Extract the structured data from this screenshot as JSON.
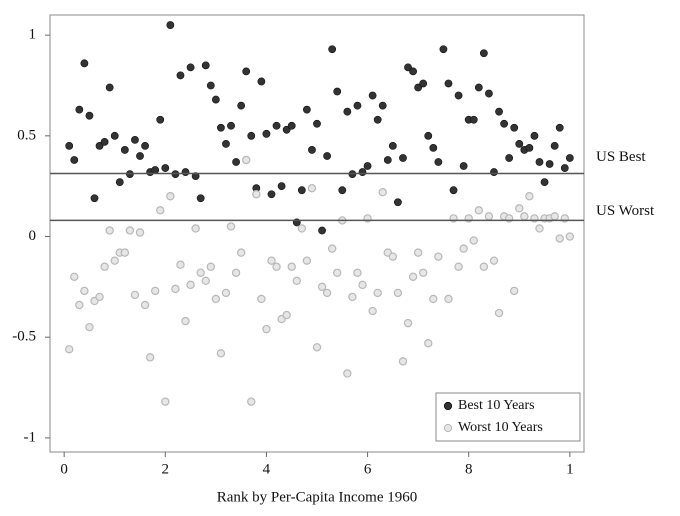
{
  "chart_data": {
    "type": "scatter",
    "x_label": "Rank by Per-Capita Income 1960",
    "xlim": [
      -0.028,
      1.028
    ],
    "ylim": [
      -1.07,
      1.1
    ],
    "xticks": [
      0,
      {
        "value": 0.2,
        "label": "2"
      },
      {
        "value": 0.4,
        "label": "4"
      },
      {
        "value": 0.6,
        "label": "6"
      },
      {
        "value": 0.8,
        "label": "8"
      },
      1
    ],
    "yticks": [
      1,
      0.5,
      0,
      -0.5,
      -1
    ],
    "legend": "lower right",
    "hlines": [
      {
        "label": "US Best",
        "value": 0.313
      },
      {
        "label": "US Worst",
        "value": 0.08
      }
    ],
    "series": [
      {
        "name": "Best 10 Years",
        "color": "#333333",
        "x": [
          0.01,
          0.02,
          0.03,
          0.04,
          0.05,
          0.06,
          0.07,
          0.08,
          0.09,
          0.1,
          0.11,
          0.12,
          0.13,
          0.14,
          0.15,
          0.16,
          0.17,
          0.18,
          0.19,
          0.2,
          0.21,
          0.22,
          0.23,
          0.24,
          0.25,
          0.26,
          0.27,
          0.28,
          0.29,
          0.3,
          0.31,
          0.32,
          0.33,
          0.34,
          0.35,
          0.36,
          0.37,
          0.38,
          0.39,
          0.4,
          0.41,
          0.42,
          0.43,
          0.44,
          0.45,
          0.46,
          0.47,
          0.48,
          0.49,
          0.5,
          0.51,
          0.52,
          0.53,
          0.54,
          0.55,
          0.56,
          0.57,
          0.58,
          0.59,
          0.6,
          0.61,
          0.62,
          0.63,
          0.64,
          0.65,
          0.66,
          0.67,
          0.68,
          0.69,
          0.7,
          0.71,
          0.72,
          0.73,
          0.74,
          0.75,
          0.76,
          0.77,
          0.78,
          0.79,
          0.8,
          0.81,
          0.82,
          0.83,
          0.84,
          0.85,
          0.86,
          0.87,
          0.88,
          0.89,
          0.9,
          0.91,
          0.92,
          0.93,
          0.94,
          0.95,
          0.96,
          0.97,
          0.98,
          0.99,
          1.0
        ],
        "values": [
          0.45,
          0.38,
          0.63,
          0.86,
          0.6,
          0.19,
          0.45,
          0.47,
          0.74,
          0.5,
          0.27,
          0.43,
          0.31,
          0.48,
          0.4,
          0.45,
          0.32,
          0.33,
          0.58,
          0.34,
          1.05,
          0.31,
          0.8,
          0.32,
          0.84,
          0.3,
          0.19,
          0.85,
          0.75,
          0.68,
          0.54,
          0.46,
          0.55,
          0.37,
          0.65,
          0.82,
          0.5,
          0.24,
          0.77,
          0.51,
          0.21,
          0.55,
          0.25,
          0.53,
          0.55,
          0.07,
          0.23,
          0.63,
          0.43,
          0.56,
          0.03,
          0.4,
          0.93,
          0.72,
          0.23,
          0.62,
          0.31,
          0.65,
          0.32,
          0.35,
          0.7,
          0.58,
          0.65,
          0.38,
          0.45,
          0.17,
          0.39,
          0.84,
          0.82,
          0.74,
          0.76,
          0.5,
          0.44,
          0.37,
          0.93,
          0.76,
          0.23,
          0.7,
          0.35,
          0.58,
          0.58,
          0.74,
          0.91,
          0.71,
          0.32,
          0.62,
          0.56,
          0.39,
          0.54,
          0.46,
          0.43,
          0.44,
          0.5,
          0.37,
          0.27,
          0.36,
          0.45,
          0.54,
          0.34,
          0.39
        ]
      },
      {
        "name": "Worst 10 Years",
        "color": "#b8b8b8",
        "x": [
          0.01,
          0.02,
          0.03,
          0.04,
          0.05,
          0.06,
          0.07,
          0.08,
          0.09,
          0.1,
          0.11,
          0.12,
          0.13,
          0.14,
          0.15,
          0.16,
          0.17,
          0.18,
          0.19,
          0.2,
          0.21,
          0.22,
          0.23,
          0.24,
          0.25,
          0.26,
          0.27,
          0.28,
          0.29,
          0.3,
          0.31,
          0.32,
          0.33,
          0.34,
          0.35,
          0.36,
          0.37,
          0.38,
          0.39,
          0.4,
          0.41,
          0.42,
          0.43,
          0.44,
          0.45,
          0.46,
          0.47,
          0.48,
          0.49,
          0.5,
          0.51,
          0.52,
          0.53,
          0.54,
          0.55,
          0.56,
          0.57,
          0.58,
          0.59,
          0.6,
          0.61,
          0.62,
          0.63,
          0.64,
          0.65,
          0.66,
          0.67,
          0.68,
          0.69,
          0.7,
          0.71,
          0.72,
          0.73,
          0.74,
          0.75,
          0.76,
          0.77,
          0.78,
          0.79,
          0.8,
          0.81,
          0.82,
          0.83,
          0.84,
          0.85,
          0.86,
          0.87,
          0.88,
          0.89,
          0.9,
          0.91,
          0.92,
          0.93,
          0.94,
          0.95,
          0.96,
          0.97,
          0.98,
          0.99,
          1.0
        ],
        "values": [
          -0.56,
          -0.2,
          -0.34,
          -0.27,
          -0.45,
          -0.32,
          -0.3,
          -0.15,
          0.03,
          -0.12,
          -0.08,
          -0.08,
          0.03,
          -0.29,
          0.02,
          -0.34,
          -0.6,
          -0.27,
          0.13,
          -0.82,
          0.2,
          -0.26,
          -0.14,
          -0.42,
          -0.24,
          0.04,
          -0.18,
          -0.22,
          -0.15,
          -0.31,
          -0.58,
          -0.28,
          0.05,
          -0.18,
          -0.08,
          0.38,
          -0.82,
          0.21,
          -0.31,
          -0.46,
          -0.12,
          -0.15,
          -0.41,
          -0.39,
          -0.15,
          -0.22,
          0.04,
          -0.12,
          0.24,
          -0.55,
          -0.25,
          -0.28,
          -0.06,
          -0.18,
          0.08,
          -0.68,
          -0.3,
          -0.18,
          -0.24,
          0.09,
          -0.37,
          -0.28,
          0.22,
          -0.08,
          -0.1,
          -0.28,
          -0.62,
          -0.43,
          -0.2,
          -0.08,
          -0.18,
          -0.53,
          -0.31,
          -0.1,
          -0.98,
          -0.31,
          0.09,
          -0.15,
          -0.06,
          0.09,
          -0.02,
          0.13,
          -0.15,
          0.1,
          -0.12,
          -0.38,
          0.1,
          0.09,
          -0.27,
          0.14,
          0.1,
          0.2,
          0.09,
          0.04,
          0.09,
          0.09,
          0.1,
          -0.01,
          0.09,
          0.0
        ]
      }
    ]
  }
}
